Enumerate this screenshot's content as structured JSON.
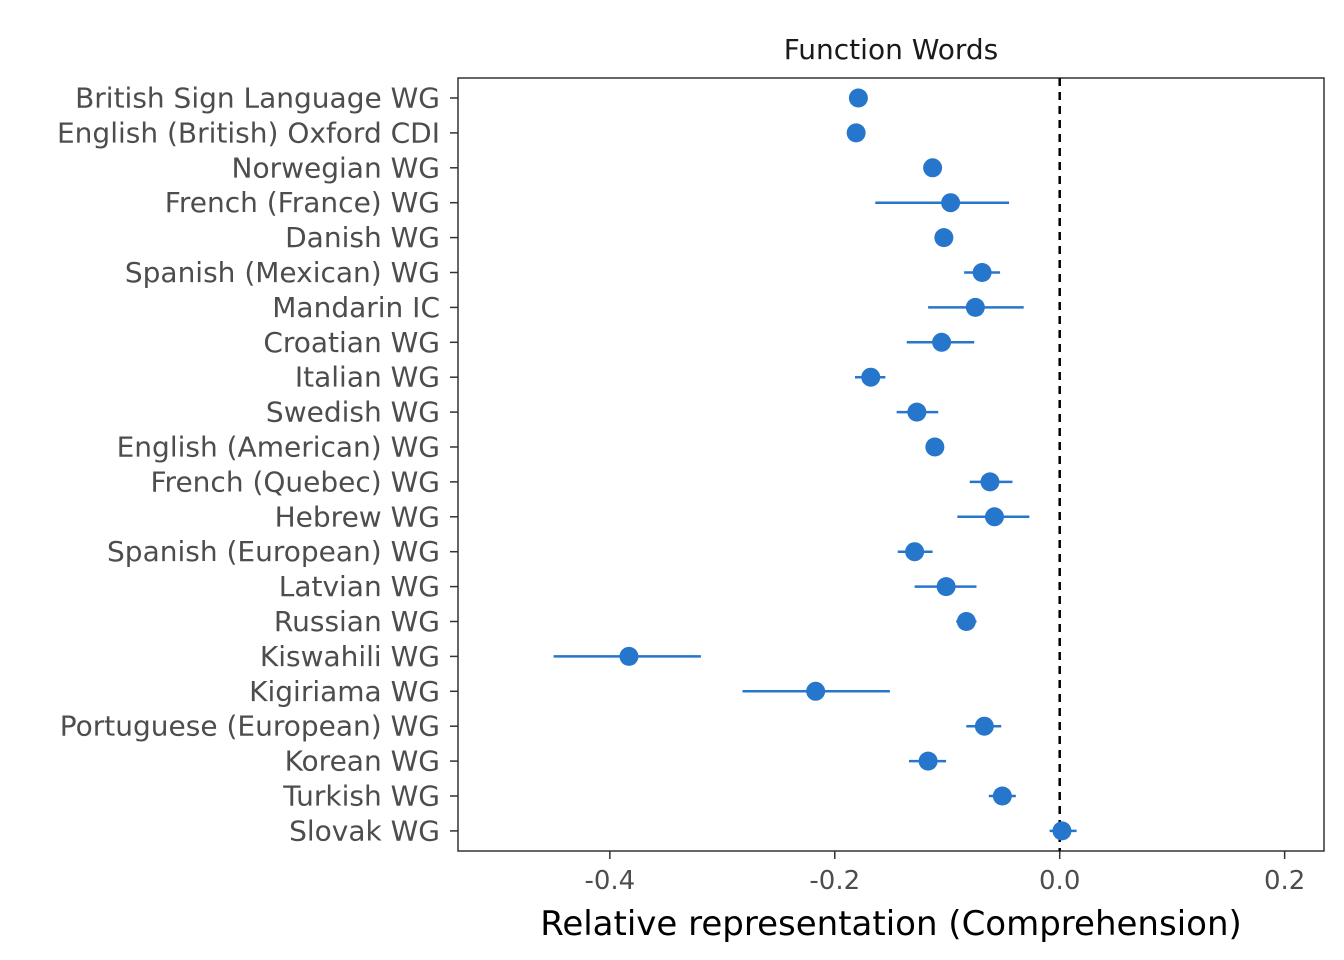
{
  "chart_data": {
    "type": "scatter",
    "title": "Function Words",
    "xlabel": "Relative representation (Comprehension)",
    "ylabel": "",
    "xlim": [
      -0.535,
      0.235
    ],
    "xticks": [
      -0.4,
      -0.2,
      0.0,
      0.2
    ],
    "xtick_labels": [
      "-0.4",
      "-0.2",
      "0.0",
      "0.2"
    ],
    "reference_line_x": 0.0,
    "grid": false,
    "color": "#2676cc",
    "categories": [
      "British Sign Language WG",
      "English (British) Oxford CDI",
      "Norwegian WG",
      "French (France) WG",
      "Danish WG",
      "Spanish (Mexican) WG",
      "Mandarin IC",
      "Croatian WG",
      "Italian WG",
      "Swedish WG",
      "English (American) WG",
      "French (Quebec) WG",
      "Hebrew WG",
      "Spanish (European) WG",
      "Latvian WG",
      "Russian WG",
      "Kiswahili WG",
      "Kigiriama WG",
      "Portuguese (European) WG",
      "Korean WG",
      "Turkish WG",
      "Slovak WG"
    ],
    "values": [
      -0.179,
      -0.181,
      -0.113,
      -0.097,
      -0.103,
      -0.069,
      -0.075,
      -0.105,
      -0.168,
      -0.127,
      -0.111,
      -0.062,
      -0.058,
      -0.129,
      -0.101,
      -0.083,
      -0.383,
      -0.217,
      -0.067,
      -0.117,
      -0.051,
      0.002
    ],
    "lower": [
      -0.187,
      -0.183,
      -0.117,
      -0.164,
      -0.106,
      -0.085,
      -0.117,
      -0.136,
      -0.182,
      -0.145,
      -0.114,
      -0.08,
      -0.091,
      -0.144,
      -0.129,
      -0.092,
      -0.45,
      -0.282,
      -0.083,
      -0.134,
      -0.063,
      -0.009
    ],
    "upper": [
      -0.176,
      -0.179,
      -0.11,
      -0.045,
      -0.1,
      -0.053,
      -0.032,
      -0.076,
      -0.155,
      -0.108,
      -0.108,
      -0.042,
      -0.027,
      -0.113,
      -0.074,
      -0.074,
      -0.319,
      -0.151,
      -0.052,
      -0.101,
      -0.039,
      0.015
    ]
  }
}
